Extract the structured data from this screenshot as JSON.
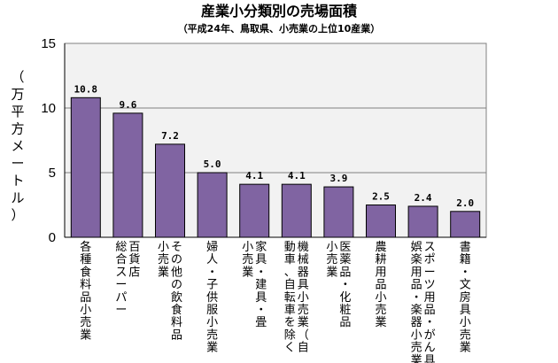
{
  "chart_data": {
    "type": "bar",
    "title": "産業小分類別の売場面積",
    "subtitle": "（平成24年、鳥取県、小売業の上位10産業）",
    "ylabel": "（万平方メートル）",
    "ylim": [
      0,
      15
    ],
    "yticks": [
      "0",
      "5",
      "10",
      "15"
    ],
    "grid": true,
    "categories": [
      "各種食料品小売業",
      "百貨店総合スーパー",
      "その他の飲食料品小売業",
      "婦人・子供服小売業",
      "家具・建具・畳小売業",
      "機械器具小売業（自動車、自転車を除く",
      "医薬品・化粧品小売業",
      "農耕用品小売業",
      "スポーツ用品・がん具娯楽用品・楽器小売業",
      "書籍・文房具小売業"
    ],
    "category_lines": [
      [
        "各種食料品小売業"
      ],
      [
        "百貨店",
        "総合スーパー"
      ],
      [
        "その他の飲食料品",
        "小売業"
      ],
      [
        "婦人・子供服小売業"
      ],
      [
        "家具・建具・畳",
        "小売業"
      ],
      [
        "機械器具小売業（自",
        "動車、自転車を除く"
      ],
      [
        "医薬品・化粧品",
        "小売業"
      ],
      [
        "農耕用品小売業"
      ],
      [
        "スポーツ用品・がん具",
        "娯楽用品・楽器小売業"
      ],
      [
        "書籍・文房具小売業"
      ]
    ],
    "values": [
      10.8,
      9.6,
      7.2,
      5.0,
      4.1,
      4.1,
      3.9,
      2.5,
      2.4,
      2.0
    ],
    "value_labels": [
      "10.8",
      "9.6",
      "7.2",
      "5.0",
      "4.1",
      "4.1",
      "3.9",
      "2.5",
      "2.4",
      "2.0"
    ],
    "colors": {
      "bar": "#8064a2",
      "bar_stroke": "#000000",
      "plot_bg": "#f2f2f2",
      "grid": "#808080"
    }
  }
}
